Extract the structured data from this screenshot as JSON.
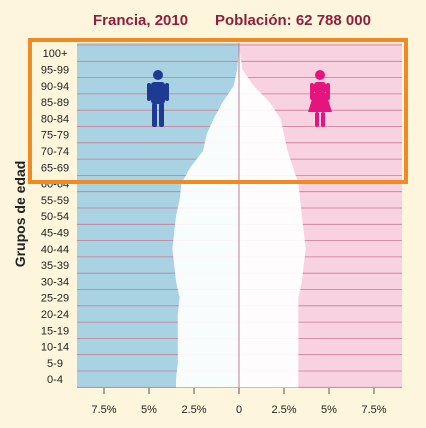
{
  "chart_data": {
    "type": "population-pyramid",
    "title_left": "Francia, 2010",
    "title_right": "Población: 62 788 000",
    "ylabel": "Grupos de edad",
    "age_groups": [
      "100+",
      "95-99",
      "90-94",
      "85-89",
      "80-84",
      "75-79",
      "70-74",
      "65-69",
      "60-64",
      "55-59",
      "50-54",
      "45-49",
      "40-44",
      "35-39",
      "30-34",
      "25-29",
      "20-24",
      "15-19",
      "10-14",
      "5-9",
      "0-4"
    ],
    "x_ticks": [
      "7.5%",
      "5%",
      "2.5%",
      "0",
      "2.5%",
      "5%",
      "7.5%"
    ],
    "xlim": [
      -9,
      9
    ],
    "series": [
      {
        "side": "left",
        "values": [
          0.02,
          0.1,
          0.3,
          0.9,
          1.4,
          1.8,
          2.0,
          2.7,
          3.2,
          3.3,
          3.5,
          3.6,
          3.7,
          3.6,
          3.5,
          3.3,
          3.4,
          3.4,
          3.4,
          3.4,
          3.5
        ]
      },
      {
        "side": "right",
        "values": [
          0.05,
          0.2,
          0.8,
          1.7,
          2.3,
          2.5,
          2.7,
          3.0,
          3.3,
          3.4,
          3.5,
          3.6,
          3.7,
          3.6,
          3.5,
          3.3,
          3.3,
          3.3,
          3.3,
          3.3,
          3.3
        ]
      }
    ],
    "highlight": {
      "from": "100+",
      "to": "65-69",
      "color": "#f08a24"
    },
    "colors": {
      "left_bg": "#a9d3e2",
      "right_bg": "#f8d2e0",
      "lines": "#c97a96",
      "pyramid": "#ffffff",
      "title": "#8f1f3c",
      "male_icon": "#1f3a93",
      "female_icon": "#e4157e"
    }
  },
  "icons": {
    "male": "male-figure-icon",
    "female": "female-figure-icon"
  }
}
